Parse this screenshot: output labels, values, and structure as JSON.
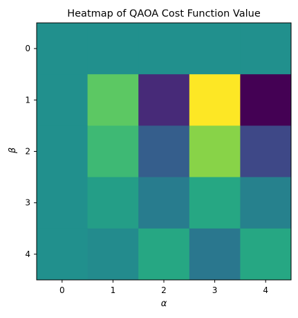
{
  "chart_data": {
    "type": "heatmap",
    "title": "Heatmap of QAOA Cost Function Value",
    "xlabel": "α",
    "ylabel": "β",
    "x_tick_labels": [
      "0",
      "1",
      "2",
      "3",
      "4"
    ],
    "y_tick_labels": [
      "0",
      "1",
      "2",
      "3",
      "4"
    ],
    "colormap": "viridis",
    "value_range": [
      0,
      1
    ],
    "grid": false,
    "colorbar": false,
    "values": [
      [
        0.5,
        0.5,
        0.5,
        0.5,
        0.5
      ],
      [
        0.5,
        0.75,
        0.12,
        1.0,
        0.0
      ],
      [
        0.5,
        0.68,
        0.3,
        0.82,
        0.22
      ],
      [
        0.5,
        0.56,
        0.42,
        0.6,
        0.44
      ],
      [
        0.5,
        0.48,
        0.6,
        0.4,
        0.6
      ]
    ]
  }
}
